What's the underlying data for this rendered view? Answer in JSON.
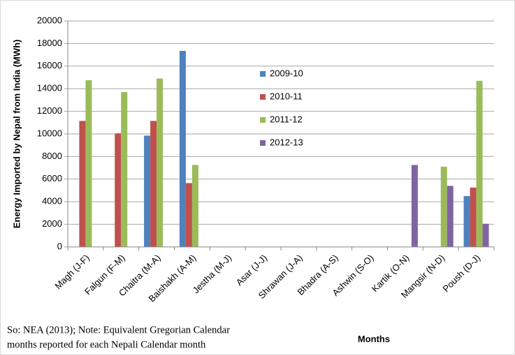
{
  "chart_data": {
    "type": "bar",
    "ylabel": "Energy Imported by Nepal from India (MWh)",
    "xlabel": "Months",
    "note": [
      "So: NEA (2013); Note: Equivalent Gregorian Calendar",
      "months reported for each Nepali Calendar month"
    ],
    "categories": [
      "Magh (J-F)",
      "Falgun (F-M)",
      "Chaitra (M-A)",
      "Baishakh (A-M)",
      "Jestha (M-J)",
      "Asar (J-J)",
      "Shrawan (J-A)",
      "Bhadra (A-S)",
      "Ashwin (S-O)",
      "Kartik (O-N)",
      "Mangsir (N-D)",
      "Poush (D-J)"
    ],
    "series": [
      {
        "name": "2009-10",
        "color": "#4f81bd",
        "values": [
          null,
          null,
          9850,
          17350,
          null,
          null,
          null,
          null,
          null,
          null,
          null,
          4500
        ]
      },
      {
        "name": "2010-11",
        "color": "#c0504d",
        "values": [
          11150,
          10050,
          11150,
          5650,
          null,
          null,
          null,
          null,
          null,
          null,
          null,
          5250
        ]
      },
      {
        "name": "2011-12",
        "color": "#9bbb59",
        "values": [
          14750,
          13700,
          14900,
          7250,
          null,
          null,
          null,
          null,
          null,
          null,
          7100,
          14700
        ]
      },
      {
        "name": "2012-13",
        "color": "#8064a2",
        "values": [
          null,
          null,
          null,
          null,
          null,
          null,
          null,
          null,
          null,
          7250,
          5400,
          2050
        ]
      }
    ],
    "ylim": [
      0,
      20000
    ],
    "yticks": [
      0,
      2000,
      4000,
      6000,
      8000,
      10000,
      12000,
      14000,
      16000,
      18000,
      20000
    ],
    "grid": true
  }
}
